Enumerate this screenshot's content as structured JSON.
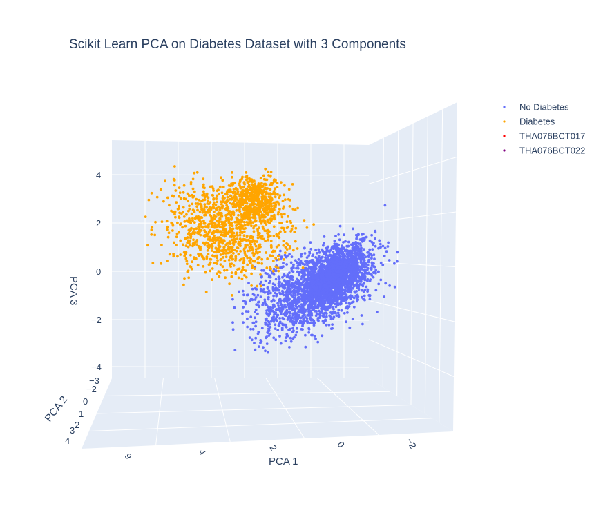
{
  "chart_data": {
    "type": "scatter",
    "projection": "3d",
    "title": "Scikit Learn PCA on Diabetes Dataset with 3 Components",
    "axes": {
      "x": {
        "label": "PCA 1",
        "ticks": [
          "9",
          "4",
          "2",
          "0",
          "−2"
        ],
        "range": [
          7,
          -3
        ]
      },
      "y": {
        "label": "PCA 2",
        "ticks": [
          "−3",
          "−2",
          "0",
          "1",
          "2",
          "3",
          "4"
        ],
        "range": [
          -3,
          4
        ]
      },
      "z": {
        "label": "PCA 3",
        "ticks": [
          "4",
          "2",
          "0",
          "−2",
          "−4"
        ],
        "range": [
          -5,
          5.5
        ]
      }
    },
    "grid": true,
    "legend_position": "top-right",
    "series": [
      {
        "name": "No Diabetes",
        "color": "#636efa",
        "clusters": [
          {
            "x": [
              -3,
              4
            ],
            "y": [
              -2,
              3
            ],
            "z": [
              -4.5,
              2.8
            ],
            "note_count": "dense"
          }
        ]
      },
      {
        "name": "Diabetes",
        "color": "#ffa500",
        "clusters": [
          {
            "x": [
              0,
              7
            ],
            "y": [
              -2,
              4
            ],
            "z": [
              -3.5,
              5.5
            ],
            "note_count": "dense"
          }
        ]
      },
      {
        "name": "THA076BCT017",
        "color": "#ff0000",
        "clusters": []
      },
      {
        "name": "THA076BCT022",
        "color": "#800080",
        "clusters": []
      }
    ]
  }
}
